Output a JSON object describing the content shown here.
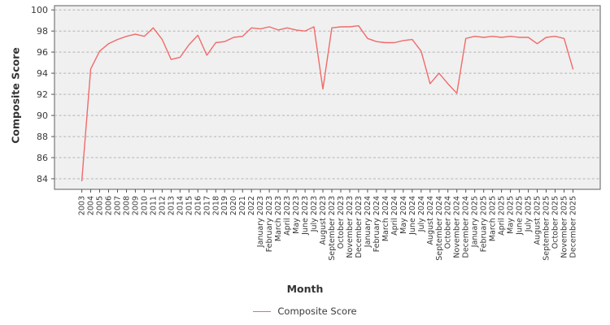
{
  "chart_data": {
    "type": "line",
    "title": "",
    "xlabel": "Month",
    "ylabel": "Composite Score",
    "ylim": [
      83.0,
      100.4
    ],
    "yticks": [
      84,
      86,
      88,
      90,
      92,
      94,
      96,
      98,
      100
    ],
    "grid": true,
    "grid_style": "dashed",
    "legend_position": "bottom-center",
    "line_color": "#ef6b6b",
    "plot_bg_color": "#f0f0f0",
    "categories": [
      "2003",
      "2004",
      "2005",
      "2006",
      "2007",
      "2008",
      "2009",
      "2010",
      "2011",
      "2012",
      "2013",
      "2014",
      "2015",
      "2016",
      "2017",
      "2018",
      "2019",
      "2020",
      "2021",
      "2022",
      "January 2023",
      "February 2023",
      "March 2023",
      "April 2023",
      "May 2023",
      "June 2023",
      "July 2023",
      "August 2023",
      "September 2023",
      "October 2023",
      "November 2023",
      "December 2023",
      "January 2024",
      "February 2024",
      "March 2024",
      "April 2024",
      "May 2024",
      "June 2024",
      "July 2024",
      "August 2024",
      "September 2024",
      "October 2024",
      "November 2024",
      "December 2024",
      "January 2025",
      "February 2025",
      "March 2025",
      "April 2025",
      "May 2025",
      "June 2025",
      "July 2025",
      "August 2025",
      "September 2025",
      "October 2025",
      "November 2025",
      "December 2025"
    ],
    "series": [
      {
        "name": "Composite Score",
        "values": [
          83.8,
          94.4,
          96.1,
          96.8,
          97.2,
          97.5,
          97.7,
          97.5,
          98.3,
          97.2,
          95.3,
          95.5,
          96.7,
          97.6,
          95.7,
          96.9,
          97.0,
          97.4,
          97.5,
          98.3,
          98.2,
          98.4,
          98.1,
          98.3,
          98.1,
          98.0,
          98.4,
          92.5,
          98.3,
          98.4,
          98.4,
          98.5,
          97.3,
          97.0,
          96.9,
          96.9,
          97.1,
          97.2,
          96.1,
          93.0,
          94.0,
          93.0,
          92.1,
          97.3,
          97.5,
          97.4,
          97.5,
          97.4,
          97.5,
          97.4,
          97.4,
          96.8,
          97.4,
          97.5,
          97.3,
          94.4
        ]
      }
    ]
  }
}
